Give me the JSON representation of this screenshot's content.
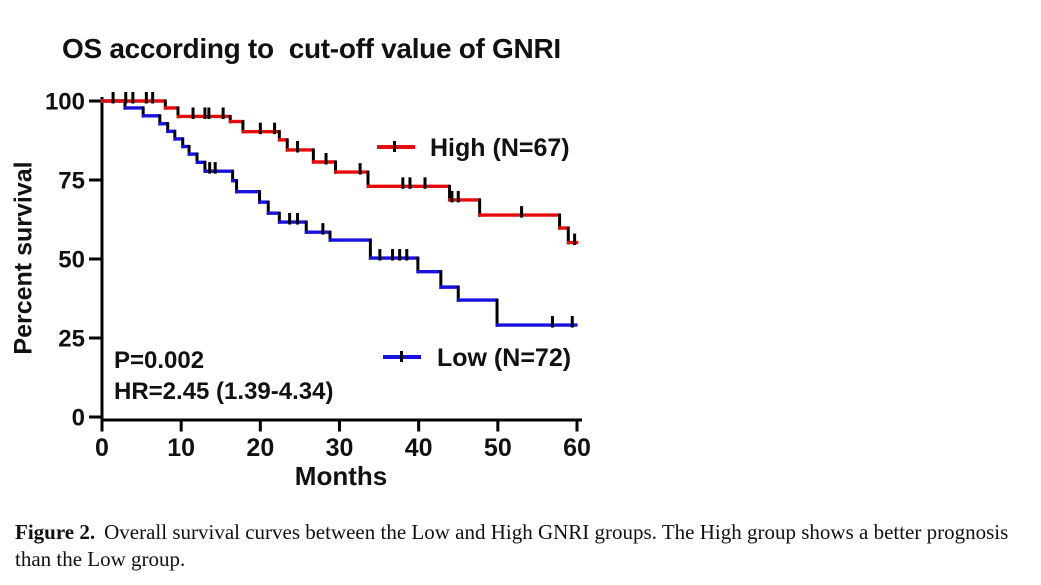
{
  "title": "OS according to  cut-off value of GNRI",
  "axes": {
    "x_label": "Months",
    "y_label": "Percent survival"
  },
  "annotation": {
    "p_value": "P=0.002",
    "hazard_ratio": "HR=2.45 (1.39-4.34)"
  },
  "legend": {
    "high_label": "High (N=67)",
    "low_label": "Low (N=72)"
  },
  "colors": {
    "high": "#e60c0c",
    "low": "#1712dd",
    "axis": "#000000"
  },
  "caption": {
    "label": "Figure 2.",
    "text": "Overall survival curves between the Low and High GNRI groups. The High group shows a better prognosis than the Low group."
  },
  "chart_data": {
    "type": "line",
    "subtype": "kaplan-meier-step",
    "title": "OS according to  cut-off value of GNRI",
    "xlabel": "Months",
    "ylabel": "Percent survival",
    "xlim": [
      0,
      60
    ],
    "ylim": [
      0,
      100
    ],
    "xticks": [
      0,
      10,
      20,
      30,
      40,
      50,
      60
    ],
    "yticks": [
      100,
      75,
      50,
      25,
      0
    ],
    "grid": false,
    "legend_position": "inline-right-of-curves",
    "annotations": [
      "P=0.002",
      "HR=2.45 (1.39-4.34)"
    ],
    "series": [
      {
        "id": "high",
        "name": "High (N=67)",
        "n": 67,
        "color": "#e60c0c",
        "segments": [
          [
            0,
            8,
            100
          ],
          [
            8,
            9.6,
            97.8
          ],
          [
            9.6,
            16.2,
            95.1
          ],
          [
            16.2,
            17.8,
            93.5
          ],
          [
            17.8,
            22.4,
            90.3
          ],
          [
            22.4,
            23.4,
            87.7
          ],
          [
            23.4,
            26.7,
            84.5
          ],
          [
            26.7,
            29.5,
            80.7
          ],
          [
            29.5,
            33.6,
            77.5
          ],
          [
            33.6,
            43.9,
            73.0
          ],
          [
            43.9,
            47.7,
            68.7
          ],
          [
            47.7,
            57.8,
            63.9
          ],
          [
            57.8,
            58.9,
            59.8
          ],
          [
            58.9,
            60.1,
            55.2
          ]
        ],
        "censor_ticks": [
          [
            1.4,
            100
          ],
          [
            3.0,
            100
          ],
          [
            3.9,
            100
          ],
          [
            5.6,
            100
          ],
          [
            6.4,
            100
          ],
          [
            11.5,
            95.1
          ],
          [
            13.0,
            95.1
          ],
          [
            13.5,
            95.1
          ],
          [
            15.3,
            95.1
          ],
          [
            20.0,
            90.3
          ],
          [
            21.8,
            90.3
          ],
          [
            24.7,
            84.5
          ],
          [
            28.3,
            80.7
          ],
          [
            32.6,
            77.5
          ],
          [
            38.0,
            73.0
          ],
          [
            38.9,
            73.0
          ],
          [
            40.8,
            73.0
          ],
          [
            44.2,
            68.7
          ],
          [
            45.0,
            68.7
          ],
          [
            53.0,
            63.9
          ],
          [
            59.7,
            55.2
          ]
        ]
      },
      {
        "id": "low",
        "name": "Low (N=72)",
        "n": 72,
        "color": "#1712dd",
        "segments": [
          [
            0,
            2.9,
            100
          ],
          [
            2.9,
            5.2,
            97.8
          ],
          [
            5.2,
            7.3,
            95.3
          ],
          [
            7.3,
            8.3,
            92.8
          ],
          [
            8.3,
            9.2,
            90.4
          ],
          [
            9.2,
            10.2,
            88.0
          ],
          [
            10.2,
            11.0,
            85.6
          ],
          [
            11.0,
            12.0,
            83.2
          ],
          [
            12.0,
            13.0,
            80.6
          ],
          [
            13.0,
            16.5,
            77.8
          ],
          [
            16.5,
            17.0,
            74.8
          ],
          [
            17.0,
            19.9,
            71.3
          ],
          [
            19.9,
            21.0,
            68.0
          ],
          [
            21.0,
            22.4,
            64.5
          ],
          [
            22.4,
            25.8,
            61.7
          ],
          [
            25.8,
            28.8,
            58.5
          ],
          [
            28.8,
            33.9,
            56.0
          ],
          [
            33.9,
            39.9,
            50.3
          ],
          [
            39.9,
            42.8,
            46.0
          ],
          [
            42.8,
            45.0,
            41.1
          ],
          [
            45.0,
            49.9,
            37.0
          ],
          [
            49.9,
            60,
            29.1
          ]
        ],
        "censor_ticks": [
          [
            13.6,
            77.8
          ],
          [
            14.3,
            77.8
          ],
          [
            23.7,
            61.7
          ],
          [
            24.7,
            61.7
          ],
          [
            27.9,
            58.5
          ],
          [
            35.1,
            50.3
          ],
          [
            36.7,
            50.3
          ],
          [
            37.6,
            50.3
          ],
          [
            38.5,
            50.3
          ],
          [
            56.9,
            29.1
          ],
          [
            59.4,
            29.1
          ]
        ]
      }
    ]
  }
}
